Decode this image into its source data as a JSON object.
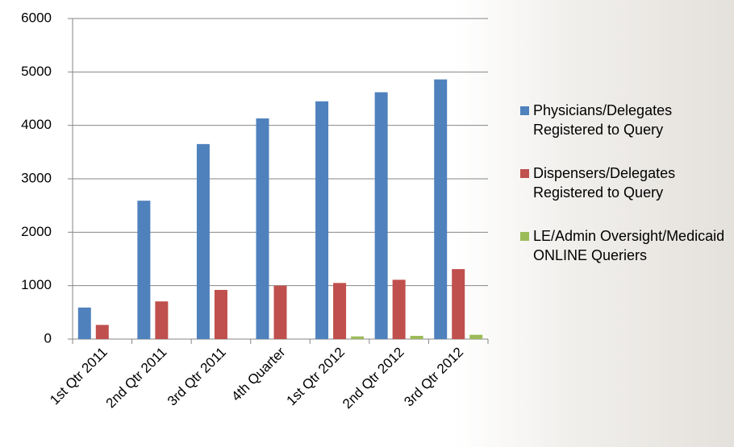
{
  "chart_data": {
    "type": "bar",
    "categories": [
      "1st Qtr 2011",
      "2nd Qtr 2011",
      "3rd Qtr 2011",
      "4th Quarter",
      "1st Qtr 2012",
      "2nd Qtr 2012",
      "3rd Qtr 2012"
    ],
    "series": [
      {
        "name": "Physicians/Delegates Registered to Query",
        "color": "#4f81bd",
        "values": [
          590,
          2590,
          3650,
          4130,
          4450,
          4620,
          4860
        ]
      },
      {
        "name": "Dispensers/Delegates Registered to Query",
        "color": "#c0504d",
        "values": [
          265,
          705,
          920,
          1000,
          1050,
          1110,
          1310
        ]
      },
      {
        "name": "LE/Admin Oversight/Medicaid ONLINE Queriers",
        "color": "#9bbb59",
        "values": [
          0,
          0,
          0,
          0,
          50,
          60,
          80
        ]
      }
    ],
    "ylim": [
      0,
      6000
    ],
    "yticks": [
      0,
      1000,
      2000,
      3000,
      4000,
      5000,
      6000
    ],
    "grid": true
  }
}
